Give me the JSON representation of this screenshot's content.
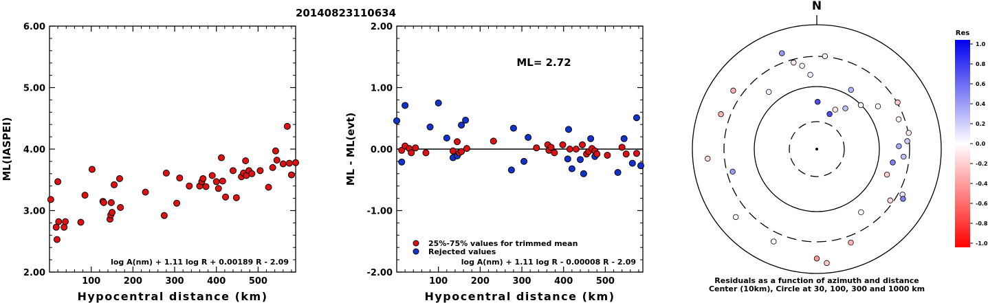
{
  "title": "20140823110634",
  "colors": {
    "kept": "#dd1111",
    "rejected": "#1133cc",
    "axis": "#000000"
  },
  "chart_data": [
    {
      "type": "scatter",
      "name": "ml-vs-distance",
      "xlabel": "Hypocentral distance (km)",
      "ylabel": "ML(IASPEI)",
      "xlim": [
        0,
        590
      ],
      "ylim": [
        2.0,
        6.0
      ],
      "xticks": [
        100,
        200,
        300,
        400,
        500
      ],
      "yticks": [
        "2.00",
        "3.00",
        "4.00",
        "5.00",
        "6.00"
      ],
      "formula": "log A(nm) + 1.11 log R + 0.00189 R - 2.09",
      "points": [
        [
          3,
          3.18
        ],
        [
          16,
          2.73
        ],
        [
          18,
          2.53
        ],
        [
          20,
          3.47
        ],
        [
          22,
          2.82
        ],
        [
          35,
          2.73
        ],
        [
          38,
          2.82
        ],
        [
          75,
          2.81
        ],
        [
          85,
          3.25
        ],
        [
          102,
          3.67
        ],
        [
          128,
          3.15
        ],
        [
          130,
          3.13
        ],
        [
          145,
          2.86
        ],
        [
          147,
          2.93
        ],
        [
          148,
          3.13
        ],
        [
          150,
          2.97
        ],
        [
          155,
          3.42
        ],
        [
          168,
          3.52
        ],
        [
          170,
          3.05
        ],
        [
          230,
          3.3
        ],
        [
          275,
          2.92
        ],
        [
          280,
          3.61
        ],
        [
          305,
          3.12
        ],
        [
          312,
          3.53
        ],
        [
          335,
          3.4
        ],
        [
          360,
          3.4
        ],
        [
          365,
          3.47
        ],
        [
          368,
          3.52
        ],
        [
          375,
          3.39
        ],
        [
          390,
          3.57
        ],
        [
          400,
          3.47
        ],
        [
          405,
          3.36
        ],
        [
          412,
          3.86
        ],
        [
          415,
          3.48
        ],
        [
          422,
          3.22
        ],
        [
          440,
          3.65
        ],
        [
          448,
          3.21
        ],
        [
          460,
          3.55
        ],
        [
          465,
          3.61
        ],
        [
          470,
          3.81
        ],
        [
          472,
          3.57
        ],
        [
          478,
          3.65
        ],
        [
          485,
          3.6
        ],
        [
          505,
          3.65
        ],
        [
          525,
          3.38
        ],
        [
          535,
          3.7
        ],
        [
          542,
          3.97
        ],
        [
          545,
          3.82
        ],
        [
          560,
          3.76
        ],
        [
          570,
          4.37
        ],
        [
          575,
          3.77
        ],
        [
          580,
          3.58
        ],
        [
          590,
          3.78
        ]
      ]
    },
    {
      "type": "scatter",
      "name": "residual-vs-distance",
      "xlabel": "Hypocentral distance (km)",
      "ylabel": "ML - ML(evt)",
      "xlim": [
        0,
        590
      ],
      "ylim": [
        -2.0,
        2.0
      ],
      "xticks": [
        100,
        200,
        300,
        400,
        500
      ],
      "yticks": [
        "-2.00",
        "-1.00",
        "0.00",
        "1.00",
        "2.00"
      ],
      "annotation": "ML= 2.72",
      "legend": [
        "25%-75% values for trimmed mean",
        "Rejected values"
      ],
      "legend_position": "bottom-left",
      "formula": "log A(nm) + 1.11 log R - 0.00008 R - 2.09",
      "kept": [
        [
          12,
          -0.02
        ],
        [
          20,
          0.05
        ],
        [
          30,
          0.01
        ],
        [
          35,
          -0.06
        ],
        [
          45,
          0.02
        ],
        [
          70,
          -0.06
        ],
        [
          135,
          -0.03
        ],
        [
          145,
          0.12
        ],
        [
          150,
          -0.06
        ],
        [
          155,
          -0.04
        ],
        [
          168,
          0.01
        ],
        [
          232,
          0.13
        ],
        [
          335,
          0.02
        ],
        [
          362,
          0.07
        ],
        [
          365,
          -0.02
        ],
        [
          370,
          0.03
        ],
        [
          378,
          -0.06
        ],
        [
          398,
          0.07
        ],
        [
          415,
          0.0
        ],
        [
          430,
          0.0
        ],
        [
          445,
          0.07
        ],
        [
          455,
          -0.08
        ],
        [
          460,
          -0.04
        ],
        [
          468,
          0.01
        ],
        [
          475,
          -0.03
        ],
        [
          480,
          -0.08
        ],
        [
          505,
          -0.1
        ],
        [
          540,
          0.03
        ],
        [
          550,
          -0.08
        ],
        [
          575,
          -0.07
        ]
      ],
      "rejected": [
        [
          0,
          0.46
        ],
        [
          12,
          -0.21
        ],
        [
          20,
          0.71
        ],
        [
          80,
          0.36
        ],
        [
          100,
          0.75
        ],
        [
          120,
          0.18
        ],
        [
          135,
          -0.14
        ],
        [
          145,
          -0.11
        ],
        [
          155,
          0.39
        ],
        [
          165,
          0.47
        ],
        [
          275,
          -0.34
        ],
        [
          280,
          0.34
        ],
        [
          305,
          -0.2
        ],
        [
          315,
          0.19
        ],
        [
          410,
          -0.16
        ],
        [
          412,
          0.32
        ],
        [
          420,
          -0.32
        ],
        [
          440,
          -0.17
        ],
        [
          448,
          -0.4
        ],
        [
          465,
          0.17
        ],
        [
          475,
          -0.12
        ],
        [
          530,
          -0.38
        ],
        [
          545,
          0.17
        ],
        [
          565,
          -0.23
        ],
        [
          575,
          0.51
        ],
        [
          585,
          -0.27
        ]
      ]
    },
    {
      "type": "scatter",
      "name": "azimuth-distance-residuals",
      "north_label": "N",
      "caption_line1": "Residuals as a function of azimuth and distance",
      "caption_line2": "Center (10km), Circle at 30, 100, 300 and 1000 km",
      "rings_km": [
        30,
        100,
        300,
        1000
      ],
      "colorbar_title": "Res",
      "colorbar_range": [
        -1.0,
        1.0
      ],
      "colorbar_ticks": [
        "1.0",
        "0.8",
        "0.6",
        "0.4",
        "0.2",
        "0.0",
        "-0.2",
        "-0.4",
        "-0.6",
        "-0.8",
        "-1.0"
      ],
      "stations": [
        [
          1,
          -0.38,
          0.7
        ],
        [
          20,
          -0.3,
          0.7
        ],
        [
          25,
          -0.35,
          -0.1
        ],
        [
          35,
          -0.4,
          0.25
        ],
        [
          45,
          -0.5,
          0.05
        ],
        [
          55,
          -0.6,
          0.0
        ],
        [
          70,
          -0.7,
          -0.05
        ],
        [
          80,
          -0.75,
          -0.1
        ],
        [
          85,
          -0.73,
          0.2
        ],
        [
          88,
          -0.66,
          0.35
        ],
        [
          95,
          -0.7,
          0.25
        ],
        [
          100,
          -0.62,
          0.5
        ],
        [
          110,
          -0.6,
          -0.2
        ],
        [
          118,
          -0.78,
          0.1
        ],
        [
          125,
          -0.72,
          -0.15
        ],
        [
          145,
          -0.62,
          0.0
        ],
        [
          160,
          -0.8,
          -0.3
        ],
        [
          180,
          -0.88,
          -0.4
        ],
        [
          205,
          -0.82,
          0.0
        ],
        [
          230,
          -0.85,
          0.0
        ],
        [
          290,
          -0.82,
          -0.3
        ],
        [
          305,
          -0.82,
          -0.3
        ],
        [
          340,
          -0.82,
          0.4
        ],
        [
          345,
          -0.72,
          -0.1
        ],
        [
          350,
          -0.68,
          -0.05
        ],
        [
          355,
          -0.6,
          0.05
        ],
        [
          5,
          -0.75,
          -0.05
        ],
        [
          60,
          -0.75,
          -0.2
        ],
        [
          120,
          -0.8,
          0.5
        ],
        [
          175,
          -0.92,
          -0.2
        ],
        [
          265,
          -0.88,
          -0.15
        ],
        [
          255,
          -0.7,
          0.4
        ],
        [
          320,
          -0.6,
          0.05
        ],
        [
          30,
          -0.55,
          0.3
        ]
      ]
    }
  ]
}
